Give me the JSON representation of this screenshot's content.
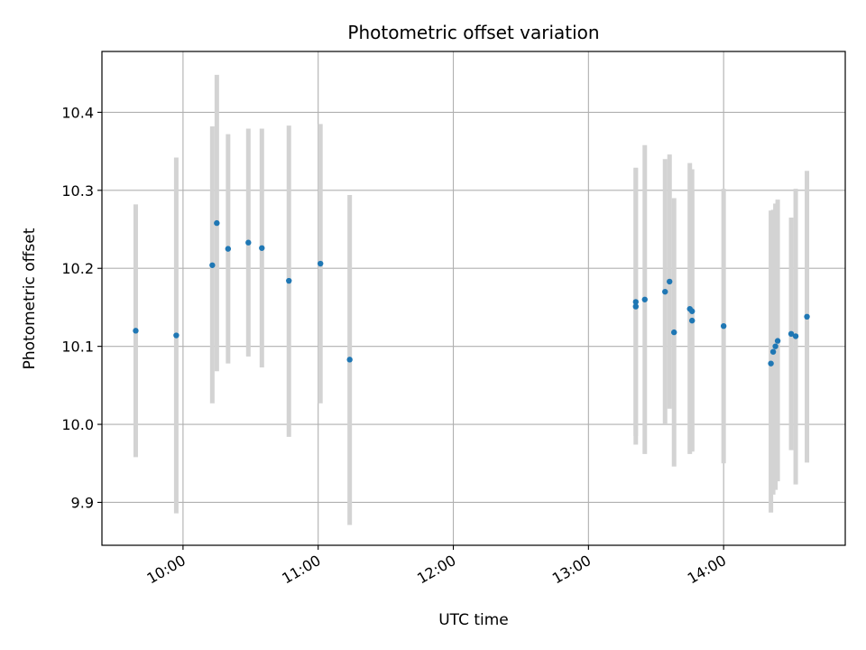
{
  "chart_data": {
    "type": "scatter",
    "title": "Photometric offset variation",
    "xlabel": "UTC time",
    "ylabel": "Photometric offset",
    "x_unit": "UTC time (HH:MM)",
    "xlim": [
      "09:24",
      "14:54"
    ],
    "ylim": [
      9.845,
      10.478
    ],
    "x_ticks": [
      "10:00",
      "11:00",
      "12:00",
      "13:00",
      "14:00"
    ],
    "y_ticks": [
      9.9,
      10.0,
      10.1,
      10.2,
      10.3,
      10.4
    ],
    "grid": true,
    "point_color": "#1f77b4",
    "errorbar_color": "#d3d3d3",
    "points": [
      {
        "time": "09:39",
        "y": 10.12,
        "ylow": 9.958,
        "yhigh": 10.282
      },
      {
        "time": "09:57",
        "y": 10.114,
        "ylow": 9.886,
        "yhigh": 10.342
      },
      {
        "time": "10:13",
        "y": 10.204,
        "ylow": 10.027,
        "yhigh": 10.382
      },
      {
        "time": "10:15",
        "y": 10.258,
        "ylow": 10.068,
        "yhigh": 10.448
      },
      {
        "time": "10:20",
        "y": 10.225,
        "ylow": 10.078,
        "yhigh": 10.372
      },
      {
        "time": "10:29",
        "y": 10.233,
        "ylow": 10.087,
        "yhigh": 10.379
      },
      {
        "time": "10:35",
        "y": 10.226,
        "ylow": 10.073,
        "yhigh": 10.379
      },
      {
        "time": "10:47",
        "y": 10.184,
        "ylow": 9.984,
        "yhigh": 10.383
      },
      {
        "time": "11:01",
        "y": 10.206,
        "ylow": 10.027,
        "yhigh": 10.385
      },
      {
        "time": "11:14",
        "y": 10.083,
        "ylow": 9.871,
        "yhigh": 10.294
      },
      {
        "time": "13:21",
        "y": 10.151,
        "ylow": 9.974,
        "yhigh": 10.328
      },
      {
        "time": "13:21",
        "y": 10.157,
        "ylow": 9.985,
        "yhigh": 10.329
      },
      {
        "time": "13:25",
        "y": 10.16,
        "ylow": 9.962,
        "yhigh": 10.358
      },
      {
        "time": "13:34",
        "y": 10.17,
        "ylow": 10.0,
        "yhigh": 10.34
      },
      {
        "time": "13:36",
        "y": 10.183,
        "ylow": 10.02,
        "yhigh": 10.346
      },
      {
        "time": "13:38",
        "y": 10.118,
        "ylow": 9.946,
        "yhigh": 10.29
      },
      {
        "time": "13:45",
        "y": 10.148,
        "ylow": 9.962,
        "yhigh": 10.335
      },
      {
        "time": "13:46",
        "y": 10.145,
        "ylow": 9.965,
        "yhigh": 10.327
      },
      {
        "time": "13:46",
        "y": 10.133,
        "ylow": 9.966,
        "yhigh": 10.3
      },
      {
        "time": "14:00",
        "y": 10.126,
        "ylow": 9.95,
        "yhigh": 10.302
      },
      {
        "time": "14:21",
        "y": 10.078,
        "ylow": 9.887,
        "yhigh": 10.274
      },
      {
        "time": "14:22",
        "y": 10.093,
        "ylow": 9.91,
        "yhigh": 10.275
      },
      {
        "time": "14:23",
        "y": 10.1,
        "ylow": 9.916,
        "yhigh": 10.283
      },
      {
        "time": "14:24",
        "y": 10.107,
        "ylow": 9.927,
        "yhigh": 10.288
      },
      {
        "time": "14:30",
        "y": 10.116,
        "ylow": 9.967,
        "yhigh": 10.265
      },
      {
        "time": "14:32",
        "y": 10.113,
        "ylow": 9.923,
        "yhigh": 10.302
      },
      {
        "time": "14:37",
        "y": 10.138,
        "ylow": 9.951,
        "yhigh": 10.325
      }
    ]
  }
}
